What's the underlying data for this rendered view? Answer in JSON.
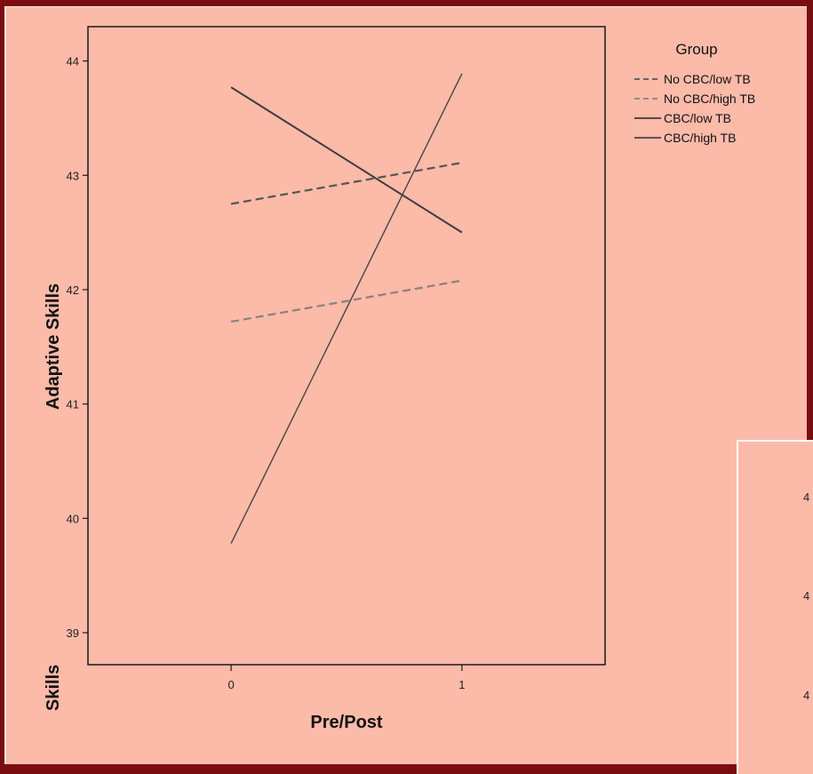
{
  "chart_data": {
    "type": "line",
    "x": [
      0,
      1
    ],
    "xticks": [
      "0",
      "1"
    ],
    "yticks": [
      "39",
      "40",
      "41",
      "42",
      "43",
      "44"
    ],
    "ylim": [
      38.72,
      44.3
    ],
    "xlim": [
      -0.62,
      1.62
    ],
    "xlabel": "Pre/Post",
    "ylabel": "Adaptive Skills",
    "legend_title": "Group",
    "legend_position": "right",
    "grid": false,
    "series": [
      {
        "name": "No CBC/low  TB",
        "values": [
          42.75,
          43.11
        ],
        "color": "#555555",
        "dash": "9,5",
        "width": 2.2
      },
      {
        "name": "No CBC/high TB",
        "values": [
          41.72,
          42.08
        ],
        "color": "#8a8080",
        "dash": "9,5",
        "width": 2.2
      },
      {
        "name": "CBC/low  TB",
        "values": [
          43.77,
          42.5
        ],
        "color": "#3a3a3a",
        "dash": "",
        "width": 2
      },
      {
        "name": "CBC/high TB",
        "values": [
          39.78,
          43.89
        ],
        "color": "#4a4444",
        "dash": "",
        "width": 1.4
      }
    ]
  },
  "inset": {
    "ticks": [
      "4",
      "4",
      "4"
    ],
    "ylabel": "Skills"
  }
}
